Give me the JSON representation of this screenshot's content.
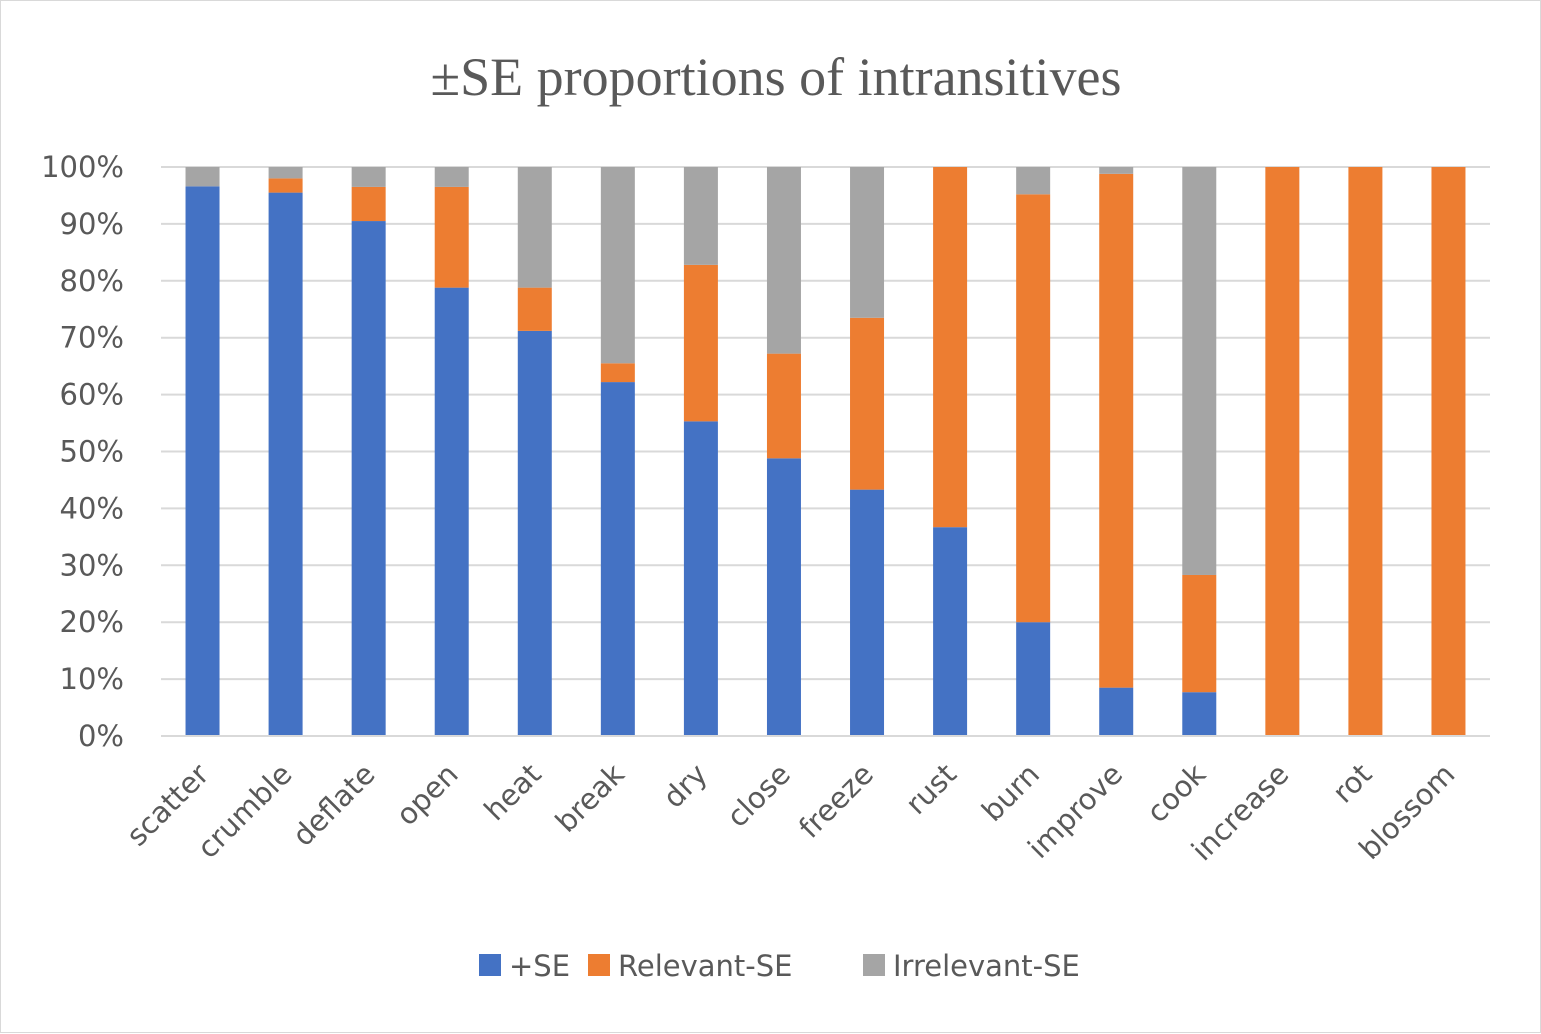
{
  "chart_data": {
    "type": "bar",
    "stacked": true,
    "percent": true,
    "title": "±SE proportions of intransitives",
    "xlabel": "",
    "ylabel": "",
    "ylim": [
      0,
      100
    ],
    "yticks": [
      "0%",
      "10%",
      "20%",
      "30%",
      "40%",
      "50%",
      "60%",
      "70%",
      "80%",
      "90%",
      "100%"
    ],
    "grid": true,
    "legend_position": "bottom",
    "categories": [
      "scatter",
      "crumble",
      "deflate",
      "open",
      "heat",
      "break",
      "dry",
      "close",
      "freeze",
      "rust",
      "burn",
      "improve",
      "cook",
      "increase",
      "rot",
      "blossom"
    ],
    "series": [
      {
        "name": "+SE",
        "color": "#4472c4",
        "values": [
          96.6,
          95.5,
          90.5,
          78.8,
          71.2,
          62.2,
          55.3,
          48.8,
          43.3,
          36.7,
          20.0,
          8.5,
          7.7,
          0,
          0,
          0
        ]
      },
      {
        "name": "Relevant-SE",
        "color": "#ed7d31",
        "values": [
          0,
          2.5,
          6.0,
          17.7,
          7.6,
          3.3,
          27.5,
          18.4,
          30.2,
          63.3,
          75.2,
          90.3,
          20.6,
          100,
          100,
          100
        ]
      },
      {
        "name": "Irrelevant-SE",
        "color": "#a5a5a5",
        "values": [
          3.4,
          2.0,
          3.5,
          3.5,
          21.2,
          34.5,
          17.2,
          32.8,
          26.5,
          0,
          4.8,
          1.2,
          71.7,
          0,
          0,
          0
        ]
      }
    ]
  }
}
